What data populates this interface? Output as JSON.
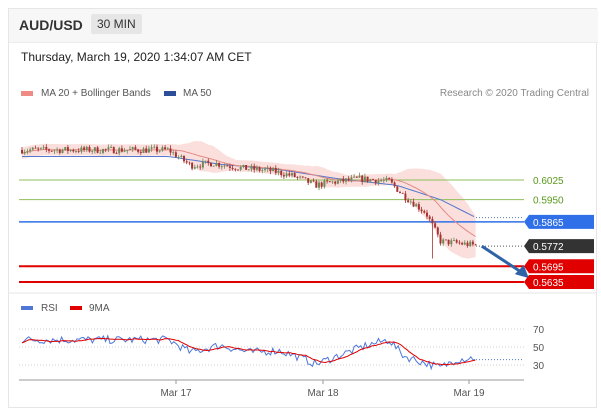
{
  "header": {
    "pair": "AUD/USD",
    "timeframe": "30 MIN"
  },
  "datetime": "Thursday, March 19, 2020 1:34:07 AM CET",
  "legend": {
    "ma20": "MA 20 + Bollinger Bands",
    "ma50": "MA 50",
    "credit": "Research © 2020 Trading Central"
  },
  "rsi_legend": {
    "rsi": "RSI",
    "ma9": "9MA"
  },
  "colors": {
    "bands": "#f4b8b4",
    "ma20": "#e48a84",
    "ma50": "#5577cc",
    "support": "#e00000",
    "resistance": "#8fbf5a",
    "pivot": "#2f6fe8",
    "candle_up": "#6d8a58",
    "candle_down": "#a83232"
  },
  "chart_data": [
    {
      "type": "candlestick",
      "title": "AUD/USD",
      "timeframe": "30 MIN",
      "x_ticks": [
        "Mar 17",
        "Mar 18",
        "Mar 19"
      ],
      "price_path": {
        "x_ticks": [
          "Mar 17",
          "Mar 18",
          "Mar 19"
        ],
        "anchors": [
          {
            "pos": -0.05,
            "price": 0.614
          },
          {
            "pos": 0.1,
            "price": 0.608
          },
          {
            "pos": 0.25,
            "price": 0.609
          },
          {
            "pos": 0.45,
            "price": 0.607
          },
          {
            "pos": 0.65,
            "price": 0.606
          },
          {
            "pos": 0.8,
            "price": 0.604
          },
          {
            "pos": 0.95,
            "price": 0.6005
          },
          {
            "pos": 1.05,
            "price": 0.6015
          },
          {
            "pos": 1.25,
            "price": 0.603
          },
          {
            "pos": 1.45,
            "price": 0.602
          },
          {
            "pos": 1.55,
            "price": 0.5965
          },
          {
            "pos": 1.7,
            "price": 0.59
          },
          {
            "pos": 1.8,
            "price": 0.579
          },
          {
            "pos": 1.9,
            "price": 0.5785
          },
          {
            "pos": 2.08,
            "price": 0.5772
          }
        ]
      },
      "ma20": "trailing moving average of the price path",
      "ma50": [
        {
          "pos": -0.05,
          "price": 0.6115
        },
        {
          "pos": 0.3,
          "price": 0.6085
        },
        {
          "pos": 0.7,
          "price": 0.6065
        },
        {
          "pos": 1.1,
          "price": 0.603
        },
        {
          "pos": 1.5,
          "price": 0.6005
        },
        {
          "pos": 1.8,
          "price": 0.595
        },
        {
          "pos": 2.08,
          "price": 0.587
        }
      ],
      "levels": [
        {
          "value": "0.6025",
          "type": "resistance"
        },
        {
          "value": "0.5950",
          "type": "resistance"
        },
        {
          "value": "0.5865",
          "type": "pivot"
        },
        {
          "value": "0.5772",
          "type": "last"
        },
        {
          "value": "0.5695",
          "type": "support"
        },
        {
          "value": "0.5635",
          "type": "support"
        }
      ],
      "forecast": {
        "from_pos": 2.08,
        "from_price": 0.5772,
        "to_pos": 2.4,
        "to_price": 0.565,
        "direction": "down"
      }
    },
    {
      "type": "line",
      "name": "RSI",
      "y_ticks": [
        70,
        50,
        30
      ],
      "ylim": [
        20,
        80
      ],
      "rsi_path": [
        {
          "pos": -0.05,
          "value": 58
        },
        {
          "pos": 0.1,
          "value": 44
        },
        {
          "pos": 0.3,
          "value": 52
        },
        {
          "pos": 0.5,
          "value": 44
        },
        {
          "pos": 0.7,
          "value": 46
        },
        {
          "pos": 0.85,
          "value": 38
        },
        {
          "pos": 0.95,
          "value": 31
        },
        {
          "pos": 1.1,
          "value": 40
        },
        {
          "pos": 1.3,
          "value": 52
        },
        {
          "pos": 1.45,
          "value": 58
        },
        {
          "pos": 1.55,
          "value": 40
        },
        {
          "pos": 1.7,
          "value": 32
        },
        {
          "pos": 1.8,
          "value": 27
        },
        {
          "pos": 1.9,
          "value": 36
        },
        {
          "pos": 2.08,
          "value": 39
        }
      ]
    }
  ]
}
